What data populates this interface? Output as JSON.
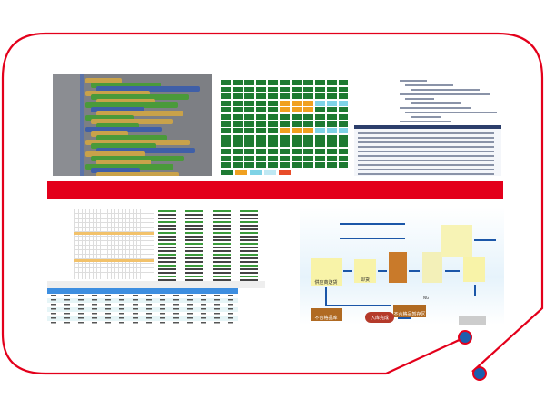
{
  "colors": {
    "frame": "#e3001b",
    "dot": "#1b5fae",
    "band": "#e3001b",
    "block_green": "#1e7a32",
    "block_orange": "#f0a020",
    "block_cyan": "#7fd3e6"
  },
  "flow": {
    "supplier_delivery": "供应商送货",
    "unload": "卸货",
    "ng": "NG",
    "reject_staging": "不合格品暂存区",
    "reject_store": "不合格品库",
    "stock_in_done": "入库完成"
  }
}
